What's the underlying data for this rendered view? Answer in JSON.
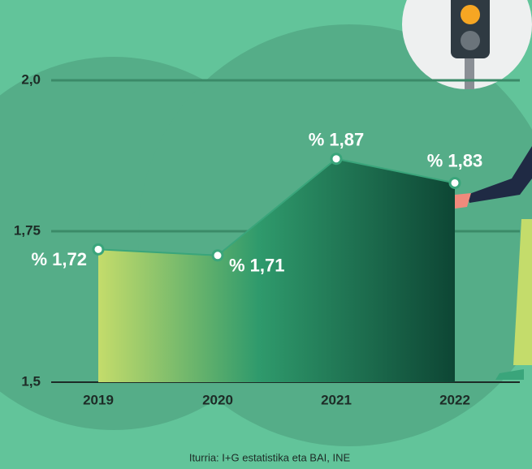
{
  "chart_data": {
    "type": "area",
    "categories": [
      "2019",
      "2020",
      "2021",
      "2022"
    ],
    "values": [
      1.72,
      1.71,
      1.87,
      1.83
    ],
    "value_labels": [
      "% 1,72",
      "% 1,71",
      "% 1,87",
      "% 1,83"
    ],
    "ylim": [
      1.5,
      2.0
    ],
    "yticks": [
      {
        "value": 1.5,
        "label": "1,5"
      },
      {
        "value": 1.75,
        "label": "1,75"
      },
      {
        "value": 2.0,
        "label": "2,0"
      }
    ],
    "grid": true,
    "color": "#3aa57b",
    "source": "Iturria: I+G estatistika eta BAI, INE"
  }
}
